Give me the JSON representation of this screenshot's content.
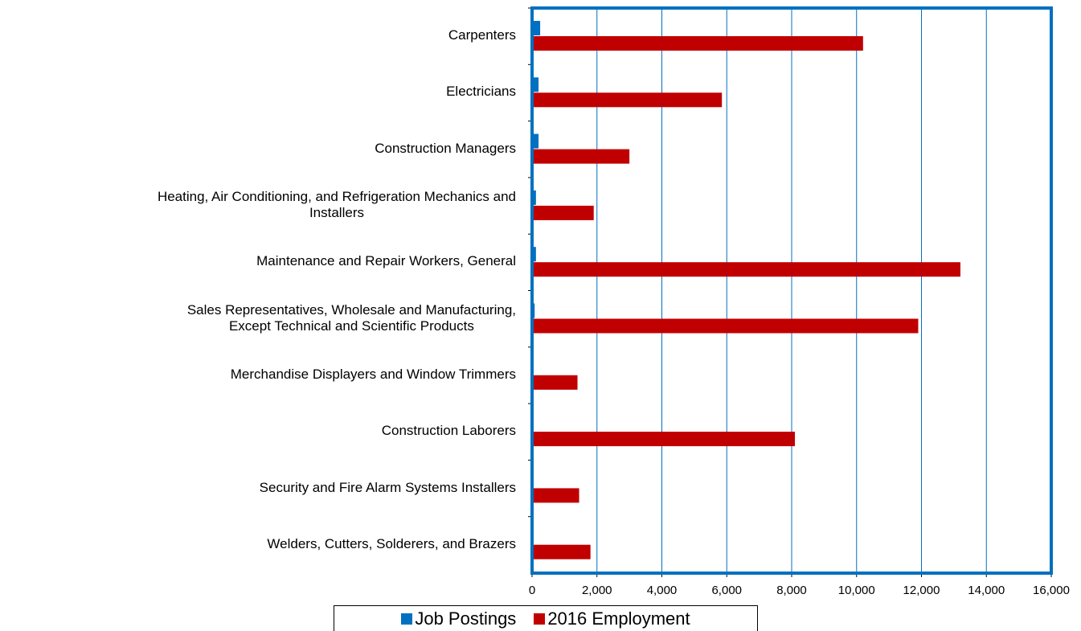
{
  "chart_data": {
    "type": "hbar",
    "categories": [
      "Carpenters",
      "Electricians",
      "Construction Managers",
      "Heating, Air Conditioning, and Refrigeration Mechanics and\nInstallers",
      "Maintenance and Repair Workers, General",
      "Sales Representatives, Wholesale and Manufacturing,\nExcept Technical and Scientific Products",
      "Merchandise Displayers and Window Trimmers",
      "Construction Laborers",
      "Security and Fire Alarm Systems Installers",
      "Welders, Cutters, Solderers, and Brazers"
    ],
    "series": [
      {
        "name": "Job Postings",
        "color": "#0070c0",
        "values": [
          250,
          200,
          200,
          120,
          120,
          80,
          50,
          50,
          50,
          50
        ]
      },
      {
        "name": "2016 Employment",
        "color": "#c00000",
        "values": [
          10200,
          5850,
          3000,
          1900,
          13200,
          11900,
          1400,
          8100,
          1450,
          1800
        ]
      }
    ],
    "xlim": [
      0,
      16000
    ],
    "xticks": [
      0,
      {
        "value": 2000,
        "label": "2,000"
      },
      {
        "value": 4000,
        "label": "4,000"
      },
      {
        "value": 6000,
        "label": "6,000"
      },
      {
        "value": 8000,
        "label": "8,000"
      },
      {
        "value": 10000,
        "label": "10,000"
      },
      {
        "value": 12000,
        "label": "12,000"
      },
      {
        "value": 14000,
        "label": "14,000"
      },
      {
        "value": 16000,
        "label": "16,000"
      }
    ],
    "grid": true,
    "frame_color": "#0070c0",
    "legend": "bottom"
  }
}
